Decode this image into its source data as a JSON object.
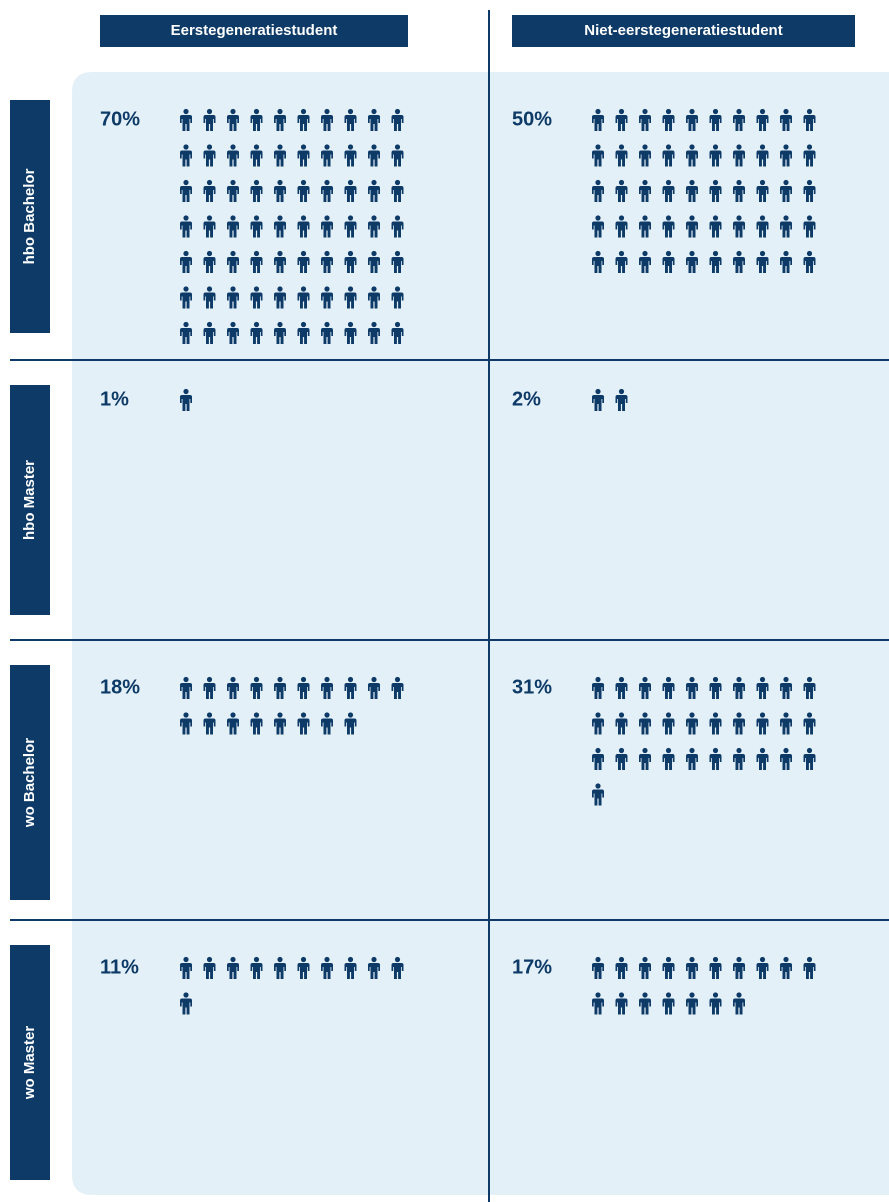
{
  "chart_data": {
    "type": "pictogram",
    "categories": [
      "hbo Bachelor",
      "hbo Master",
      "wo Bachelor",
      "wo Master"
    ],
    "series": [
      {
        "name": "Eerstegeneratiestudent",
        "color": "#0d3a66",
        "values": [
          70,
          1,
          18,
          11
        ],
        "value_labels": [
          "70%",
          "1%",
          "18%",
          "11%"
        ]
      },
      {
        "name": "Niet-eerstegeneratiestudent",
        "color": "#0d3a66",
        "values": [
          50,
          2,
          31,
          17
        ],
        "value_labels": [
          "50%",
          "2%",
          "31%",
          "17%"
        ]
      }
    ]
  }
}
